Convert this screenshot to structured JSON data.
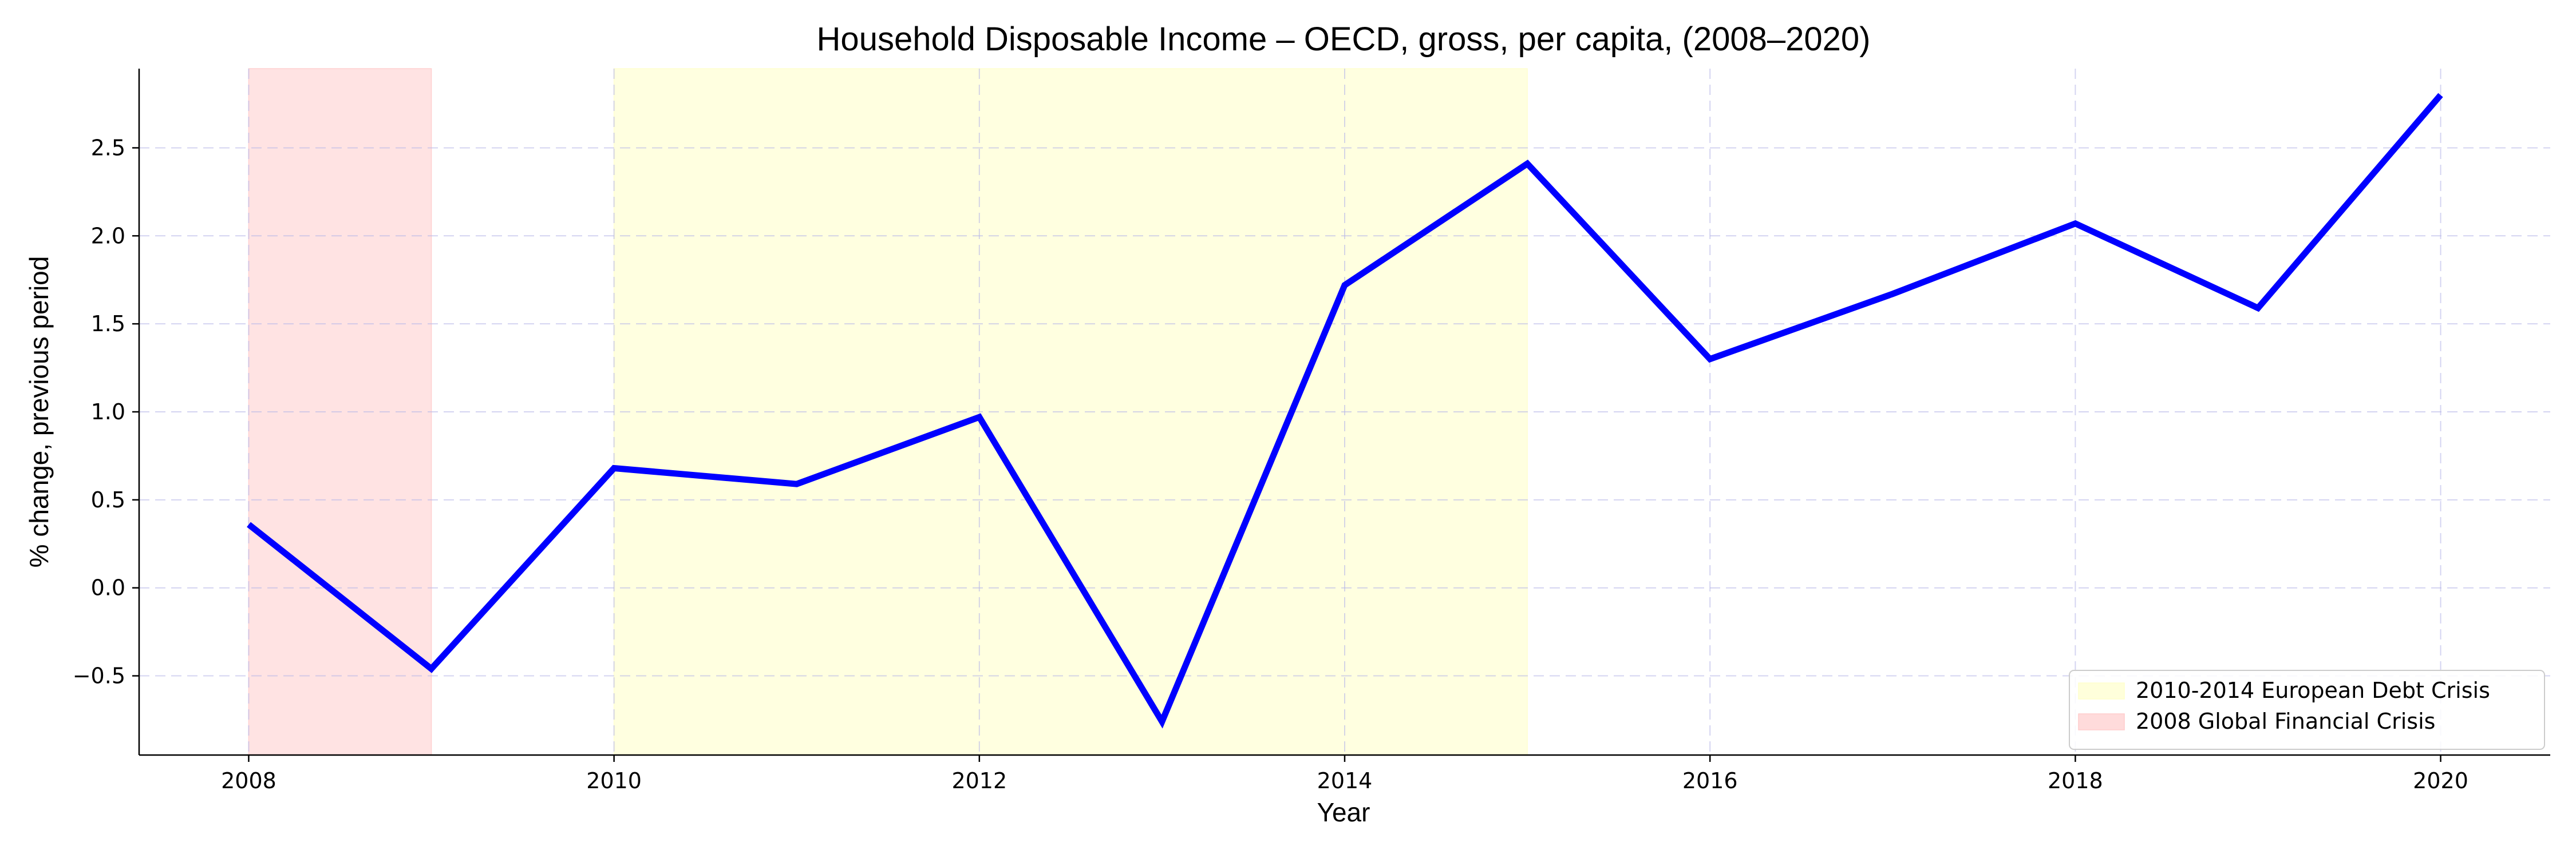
{
  "chart_data": {
    "type": "line",
    "title": "Household Disposable Income – OECD, gross, per capita, (2008–2020)",
    "xlabel": "Year",
    "ylabel": "% change, previous period",
    "xlim": [
      2007.4,
      2020.6
    ],
    "ylim": [
      -0.95,
      2.95
    ],
    "x_ticks": [
      2008,
      2010,
      2012,
      2014,
      2016,
      2018,
      2020
    ],
    "x_tick_labels": [
      "2008",
      "2010",
      "2012",
      "2014",
      "2016",
      "2018",
      "2020"
    ],
    "y_ticks": [
      -0.5,
      0.0,
      0.5,
      1.0,
      1.5,
      2.0,
      2.5
    ],
    "y_tick_labels": [
      "−0.5",
      "0.0",
      "0.5",
      "1.0",
      "1.5",
      "2.0",
      "2.5"
    ],
    "grid": true,
    "legend_position": "bottom-right",
    "series": [
      {
        "color": "#0000ff",
        "x": [
          2008,
          2009,
          2010,
          2011,
          2012,
          2013,
          2014,
          2015,
          2016,
          2017,
          2018,
          2019,
          2020
        ],
        "y": [
          0.36,
          -0.46,
          0.68,
          0.59,
          0.97,
          -0.76,
          1.72,
          2.41,
          1.3,
          1.67,
          2.07,
          1.59,
          2.8
        ]
      }
    ],
    "shaded_regions": [
      {
        "label": "2010-2014 European Debt Crisis",
        "x_start": 2010,
        "x_end": 2015,
        "color": "#ffffcc"
      },
      {
        "label": "2008 Global Financial Crisis",
        "x_start": 2008,
        "x_end": 2009,
        "color": "#ffcccc"
      }
    ]
  }
}
